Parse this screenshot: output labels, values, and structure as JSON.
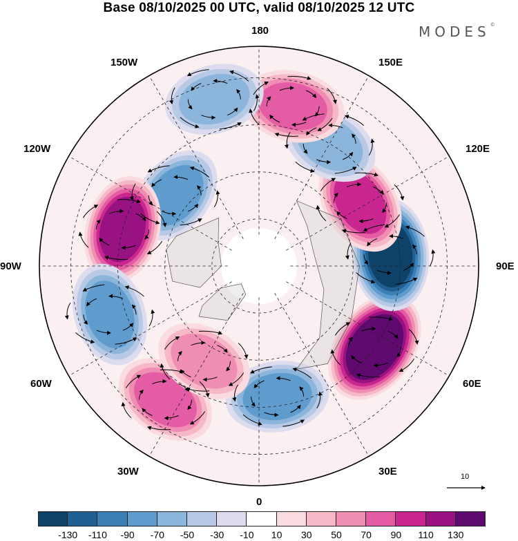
{
  "title": "Base 08/10/2025 00 UTC, valid 08/10/2025 12 UTC",
  "brand": "MODES",
  "brand_mark": "©",
  "longitude_labels": {
    "lon_180": "180",
    "lon_150e": "150E",
    "lon_120e": "120E",
    "lon_90e": "90E",
    "lon_60e": "60E",
    "lon_30e": "30E",
    "lon_0": "0",
    "lon_30w": "30W",
    "lon_60w": "60W",
    "lon_90w": "90W",
    "lon_120w": "120W",
    "lon_150w": "150W"
  },
  "vector_reference": {
    "label": "10",
    "value": 10
  },
  "colorbar": {
    "levels": [
      -150,
      -130,
      -110,
      -90,
      -70,
      -50,
      -30,
      -10,
      10,
      30,
      50,
      70,
      90,
      110,
      130,
      150
    ],
    "tick_labels": [
      "-130",
      "-110",
      "-90",
      "-70",
      "-50",
      "-30",
      "-10",
      "10",
      "30",
      "50",
      "70",
      "90",
      "110",
      "130"
    ],
    "colors": [
      "#0e4268",
      "#1f5f91",
      "#3a7fb6",
      "#5f9bcc",
      "#8cb5dc",
      "#b7c9e5",
      "#dcdcee",
      "#ffffff",
      "#f9dbe0",
      "#f6b8c7",
      "#f08db2",
      "#e45ca3",
      "#c92690",
      "#991281",
      "#5e0a6e"
    ]
  },
  "anomaly_centers": [
    {
      "name": "center-60e-positive",
      "lon": 55,
      "lat": 45,
      "value": 135
    },
    {
      "name": "center-90e-negative",
      "lon": 95,
      "lat": 48,
      "value": -120
    },
    {
      "name": "center-120e-positive",
      "lon": 122,
      "lat": 52,
      "value": 80
    },
    {
      "name": "center-150e-negative",
      "lon": 150,
      "lat": 45,
      "value": -40
    },
    {
      "name": "center-165e-positive",
      "lon": 168,
      "lat": 38,
      "value": 70
    },
    {
      "name": "center-160w-negative",
      "lon": -165,
      "lat": 35,
      "value": -50
    },
    {
      "name": "center-135w-negative",
      "lon": -130,
      "lat": 55,
      "value": -60
    },
    {
      "name": "center-105w-positive",
      "lon": -105,
      "lat": 45,
      "value": 95
    },
    {
      "name": "center-70w-negative",
      "lon": -72,
      "lat": 40,
      "value": -70
    },
    {
      "name": "center-40w-positive",
      "lon": -35,
      "lat": 38,
      "value": 65
    },
    {
      "name": "center-10e-negative",
      "lon": 8,
      "lat": 48,
      "value": -70
    },
    {
      "name": "center-40w-nearpole-positive",
      "lon": -30,
      "lat": 55,
      "value": 40
    }
  ]
}
